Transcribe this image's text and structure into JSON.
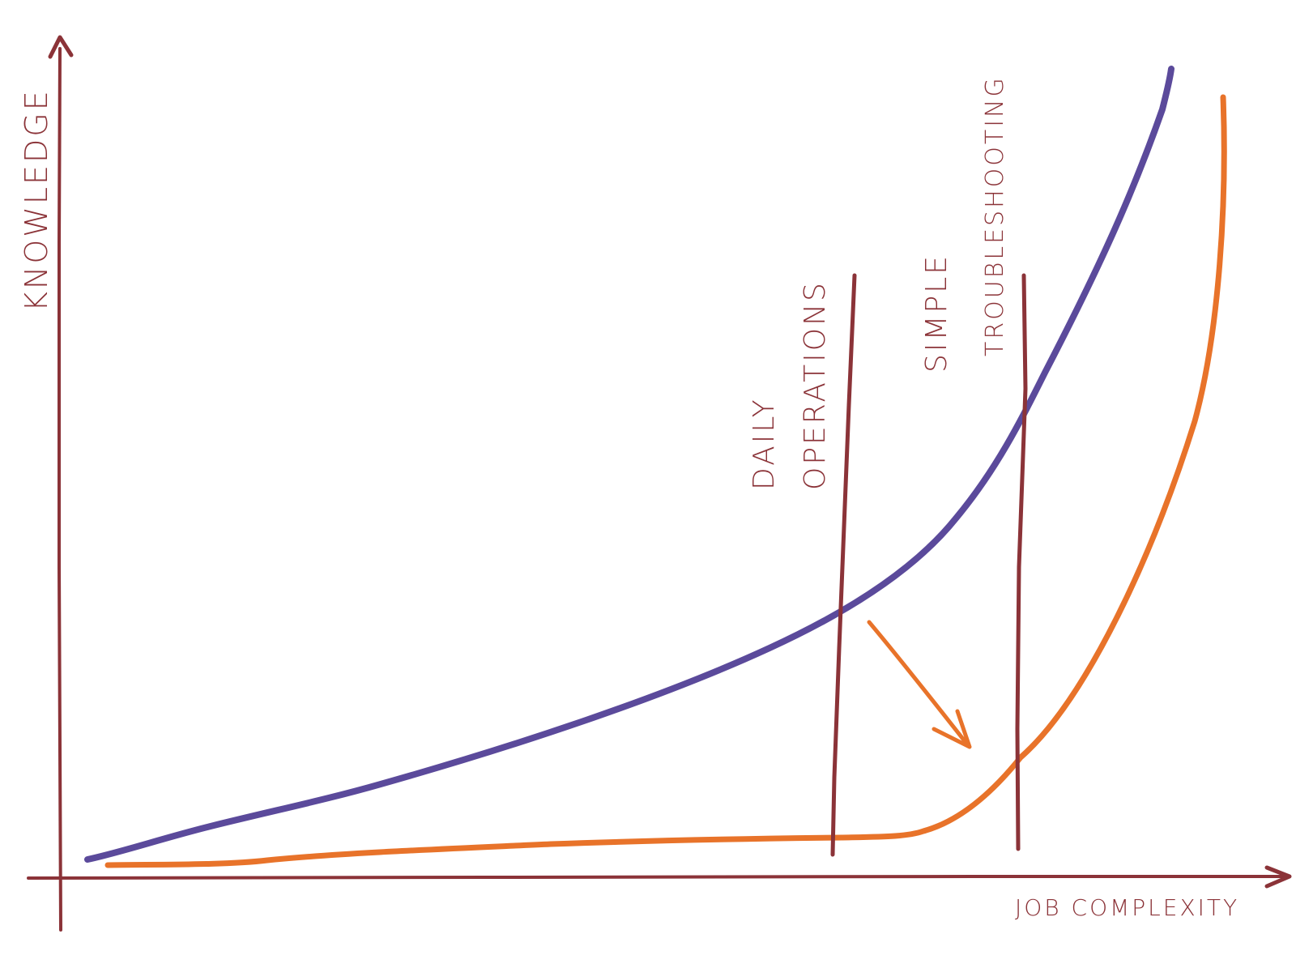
{
  "colors": {
    "background": "#ffffff",
    "axis": "#8b3338",
    "label": "#8b3338",
    "knowledge_curve": "#5b4a9b",
    "complexity_curve": "#e8732a",
    "marker_line": "#8b3338",
    "arrow": "#e8732a"
  },
  "axes": {
    "y_label": "KNOWLEDGE",
    "x_label": "JOB COMPLEXITY"
  },
  "markers": [
    {
      "id": "daily-operations",
      "label_lines": [
        "DAILY",
        "OPERATIONS"
      ]
    },
    {
      "id": "simple-troubleshooting",
      "label_lines": [
        "SIMPLE",
        "TROUBLESHOOTING"
      ]
    }
  ],
  "curves": [
    {
      "id": "knowledge-curve",
      "color_key": "knowledge_curve"
    },
    {
      "id": "complexity-curve",
      "color_key": "complexity_curve"
    }
  ],
  "arrow_icon": "down-right-arrow-icon"
}
